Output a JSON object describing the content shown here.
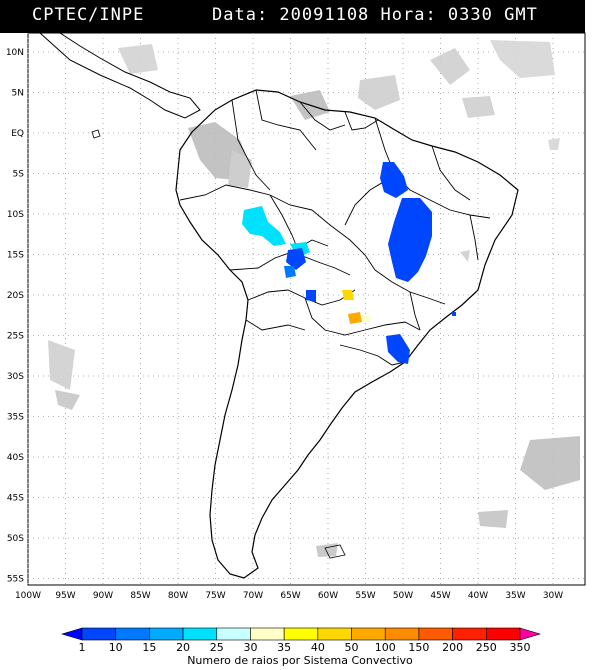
{
  "header": {
    "source": "CPTEC/INPE",
    "datetime": "Data: 20091108 Hora: 0330 GMT"
  },
  "map": {
    "lat_labels": [
      "10N",
      "5N",
      "EQ",
      "5S",
      "10S",
      "15S",
      "20S",
      "25S",
      "30S",
      "35S",
      "40S",
      "45S",
      "50S",
      "55S"
    ],
    "lon_labels": [
      "100W",
      "95W",
      "90W",
      "85W",
      "80W",
      "75W",
      "70W",
      "65W",
      "60W",
      "55W",
      "50W",
      "45W",
      "40W",
      "35W",
      "30W"
    ]
  },
  "color_scale": {
    "title": "Numero de raios por Sistema Convectivo",
    "values": [
      "1",
      "10",
      "15",
      "20",
      "25",
      "30",
      "35",
      "40",
      "50",
      "100",
      "150",
      "200",
      "250",
      "350"
    ],
    "colors": [
      "#0000ff",
      "#0046ff",
      "#0078ff",
      "#00aaff",
      "#00e0ff",
      "#c8ffff",
      "#ffffc8",
      "#ffff00",
      "#ffd700",
      "#ffaa00",
      "#ff8c00",
      "#ff5a00",
      "#ff2000",
      "#ff0000",
      "#ff00a0"
    ]
  }
}
